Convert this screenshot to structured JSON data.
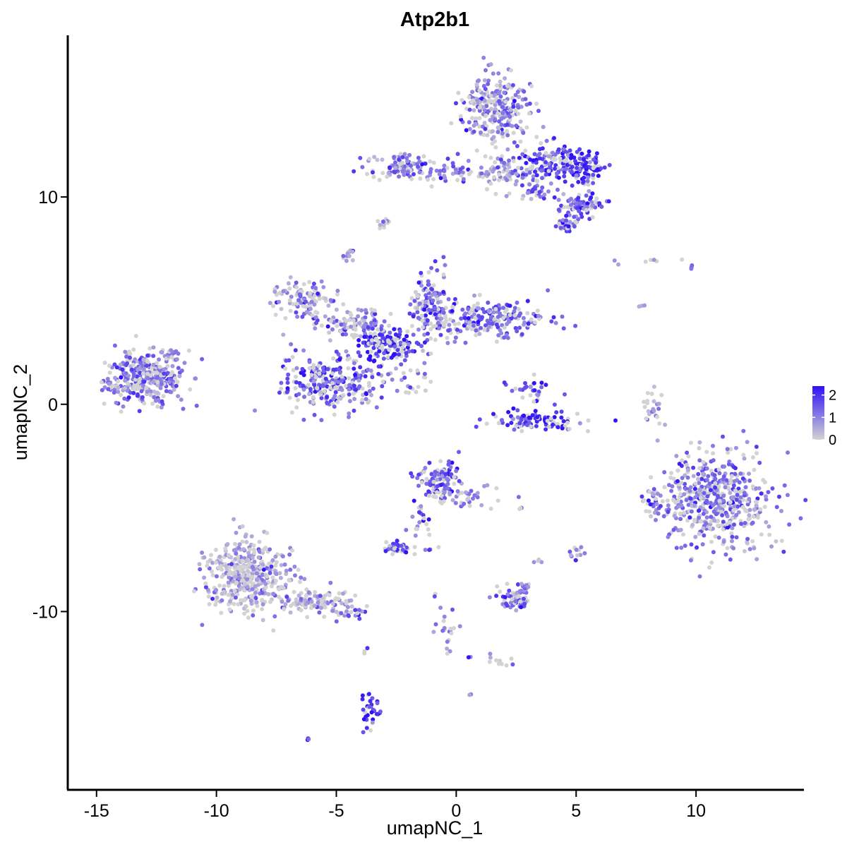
{
  "chart_data": {
    "type": "scatter",
    "title": "Atp2b1",
    "xlabel": "umapNC_1",
    "ylabel": "umapNC_2",
    "xlim": [
      -16.2,
      14.5
    ],
    "ylim": [
      -18.6,
      17.8
    ],
    "x_ticks": [
      {
        "value": -15,
        "label": "-15"
      },
      {
        "value": -10,
        "label": "-10"
      },
      {
        "value": -5,
        "label": "-5"
      },
      {
        "value": 0,
        "label": "0"
      },
      {
        "value": 5,
        "label": "5"
      },
      {
        "value": 10,
        "label": "10"
      }
    ],
    "y_ticks": [
      {
        "value": 10,
        "label": "10"
      },
      {
        "value": 0,
        "label": "0"
      },
      {
        "value": -10,
        "label": "-10"
      }
    ],
    "color_scale": {
      "low_color": "#d3d3d3",
      "high_color": "#2f10f7",
      "min": 0,
      "max": 2.4,
      "ticks": [
        {
          "value": 2,
          "label": "2"
        },
        {
          "value": 1,
          "label": "1"
        },
        {
          "value": 0,
          "label": "0"
        }
      ]
    },
    "grid": false,
    "legend_position": "right",
    "point_color_variable": "expression",
    "clusters": [
      {
        "cx": -13.0,
        "cy": 1.2,
        "sx": 1.0,
        "sy": 0.8,
        "n": 320,
        "mean_expr": 1.15
      },
      {
        "cx": -11.9,
        "cy": 2.4,
        "sx": 0.3,
        "sy": 0.3,
        "n": 20,
        "mean_expr": 1.0
      },
      {
        "cx": -5.3,
        "cy": 1.0,
        "sx": 1.2,
        "sy": 0.9,
        "n": 260,
        "mean_expr": 1.5
      },
      {
        "cx": -6.3,
        "cy": 5.0,
        "sx": 0.9,
        "sy": 0.7,
        "n": 110,
        "mean_expr": 0.9
      },
      {
        "cx": -4.2,
        "cy": 3.9,
        "sx": 0.8,
        "sy": 0.5,
        "n": 90,
        "mean_expr": 0.9
      },
      {
        "cx": -2.9,
        "cy": 2.9,
        "sx": 0.8,
        "sy": 0.6,
        "n": 150,
        "mean_expr": 1.9
      },
      {
        "cx": -1.0,
        "cy": 4.6,
        "sx": 0.6,
        "sy": 1.1,
        "n": 150,
        "mean_expr": 1.4
      },
      {
        "cx": 1.4,
        "cy": 4.1,
        "sx": 1.5,
        "sy": 0.6,
        "n": 200,
        "mean_expr": 1.3
      },
      {
        "cx": -4.6,
        "cy": 7.2,
        "sx": 0.2,
        "sy": 0.2,
        "n": 12,
        "mean_expr": 0.8
      },
      {
        "cx": -1.8,
        "cy": 1.2,
        "sx": 0.6,
        "sy": 0.5,
        "n": 25,
        "mean_expr": 1.0
      },
      {
        "cx": 3.2,
        "cy": 0.8,
        "sx": 0.5,
        "sy": 0.4,
        "n": 30,
        "mean_expr": 1.6
      },
      {
        "cx": 3.2,
        "cy": -0.8,
        "sx": 1.2,
        "sy": 0.3,
        "n": 100,
        "mean_expr": 2.0
      },
      {
        "cx": 8.3,
        "cy": -0.2,
        "sx": 0.3,
        "sy": 0.6,
        "n": 25,
        "mean_expr": 0.5
      },
      {
        "cx": -2.0,
        "cy": 11.5,
        "sx": 1.1,
        "sy": 0.4,
        "n": 110,
        "mean_expr": 1.2
      },
      {
        "cx": 0.2,
        "cy": 11.1,
        "sx": 0.9,
        "sy": 0.2,
        "n": 30,
        "mean_expr": 1.2
      },
      {
        "cx": 1.7,
        "cy": 14.3,
        "sx": 0.9,
        "sy": 1.0,
        "n": 260,
        "mean_expr": 1.0
      },
      {
        "cx": 1.9,
        "cy": 11.3,
        "sx": 0.8,
        "sy": 0.6,
        "n": 70,
        "mean_expr": 0.9
      },
      {
        "cx": 3.8,
        "cy": 11.6,
        "sx": 0.8,
        "sy": 0.7,
        "n": 120,
        "mean_expr": 1.6
      },
      {
        "cx": 5.3,
        "cy": 11.4,
        "sx": 0.5,
        "sy": 0.5,
        "n": 110,
        "mean_expr": 1.9
      },
      {
        "cx": 5.3,
        "cy": 9.6,
        "sx": 0.5,
        "sy": 0.4,
        "n": 80,
        "mean_expr": 1.6
      },
      {
        "cx": 4.6,
        "cy": 8.7,
        "sx": 0.3,
        "sy": 0.2,
        "n": 30,
        "mean_expr": 1.6
      },
      {
        "cx": 3.4,
        "cy": 10.2,
        "sx": 0.6,
        "sy": 0.3,
        "n": 30,
        "mean_expr": 1.2
      },
      {
        "cx": -2.9,
        "cy": 8.7,
        "sx": 0.2,
        "sy": 0.2,
        "n": 12,
        "mean_expr": 0.4
      },
      {
        "cx": 8.0,
        "cy": 6.9,
        "sx": 1.3,
        "sy": 0.1,
        "n": 6,
        "mean_expr": 0.7
      },
      {
        "cx": 7.8,
        "cy": 4.7,
        "sx": 0.1,
        "sy": 0.2,
        "n": 3,
        "mean_expr": 0.5
      },
      {
        "cx": 10.8,
        "cy": -4.7,
        "sx": 1.5,
        "sy": 1.5,
        "n": 520,
        "mean_expr": 1.1
      },
      {
        "cx": 8.2,
        "cy": -4.7,
        "sx": 0.3,
        "sy": 0.6,
        "n": 25,
        "mean_expr": 1.0
      },
      {
        "cx": -0.7,
        "cy": -3.7,
        "sx": 0.5,
        "sy": 0.6,
        "n": 110,
        "mean_expr": 1.5
      },
      {
        "cx": 0.6,
        "cy": -4.5,
        "sx": 0.7,
        "sy": 0.4,
        "n": 30,
        "mean_expr": 0.9
      },
      {
        "cx": -1.5,
        "cy": -5.5,
        "sx": 0.3,
        "sy": 0.6,
        "n": 20,
        "mean_expr": 1.5
      },
      {
        "cx": -2.5,
        "cy": -6.9,
        "sx": 0.4,
        "sy": 0.2,
        "n": 35,
        "mean_expr": 1.5
      },
      {
        "cx": -1.0,
        "cy": -7.0,
        "sx": 0.3,
        "sy": 0.1,
        "n": 4,
        "mean_expr": 1.2
      },
      {
        "cx": -8.6,
        "cy": -8.2,
        "sx": 1.1,
        "sy": 1.1,
        "n": 420,
        "mean_expr": 0.55
      },
      {
        "cx": -5.9,
        "cy": -9.5,
        "sx": 1.0,
        "sy": 0.4,
        "n": 90,
        "mean_expr": 0.5
      },
      {
        "cx": -4.5,
        "cy": -10.1,
        "sx": 0.5,
        "sy": 0.2,
        "n": 25,
        "mean_expr": 1.2
      },
      {
        "cx": -3.8,
        "cy": -11.8,
        "sx": 0.05,
        "sy": 0.1,
        "n": 3,
        "mean_expr": 1.2
      },
      {
        "cx": 2.4,
        "cy": -9.4,
        "sx": 0.5,
        "sy": 0.4,
        "n": 55,
        "mean_expr": 1.3
      },
      {
        "cx": 2.8,
        "cy": -8.8,
        "sx": 0.2,
        "sy": 0.2,
        "n": 10,
        "mean_expr": 1.0
      },
      {
        "cx": 3.4,
        "cy": -7.6,
        "sx": 0.15,
        "sy": 0.1,
        "n": 4,
        "mean_expr": 0.4
      },
      {
        "cx": 5.0,
        "cy": -7.2,
        "sx": 0.2,
        "sy": 0.3,
        "n": 12,
        "mean_expr": 1.1
      },
      {
        "cx": 2.7,
        "cy": -5.0,
        "sx": 0.1,
        "sy": 0.05,
        "n": 3,
        "mean_expr": 1.0
      },
      {
        "cx": -0.5,
        "cy": -10.9,
        "sx": 0.3,
        "sy": 0.7,
        "n": 20,
        "mean_expr": 1.2
      },
      {
        "cx": 1.6,
        "cy": -12.4,
        "sx": 0.6,
        "sy": 0.2,
        "n": 12,
        "mean_expr": 1.0
      },
      {
        "cx": -3.6,
        "cy": -14.8,
        "sx": 0.3,
        "sy": 0.6,
        "n": 35,
        "mean_expr": 1.7
      },
      {
        "cx": -6.2,
        "cy": -16.2,
        "sx": 0.05,
        "sy": 0.05,
        "n": 3,
        "mean_expr": 1.7
      },
      {
        "cx": 0.6,
        "cy": -14.0,
        "sx": 0.05,
        "sy": 0.05,
        "n": 2,
        "mean_expr": 0.8
      },
      {
        "cx": -0.9,
        "cy": -9.2,
        "sx": 0.05,
        "sy": 0.05,
        "n": 2,
        "mean_expr": 1.8
      },
      {
        "cx": 9.8,
        "cy": 6.8,
        "sx": 0.2,
        "sy": 0.2,
        "n": 4,
        "mean_expr": 1.0
      }
    ]
  }
}
